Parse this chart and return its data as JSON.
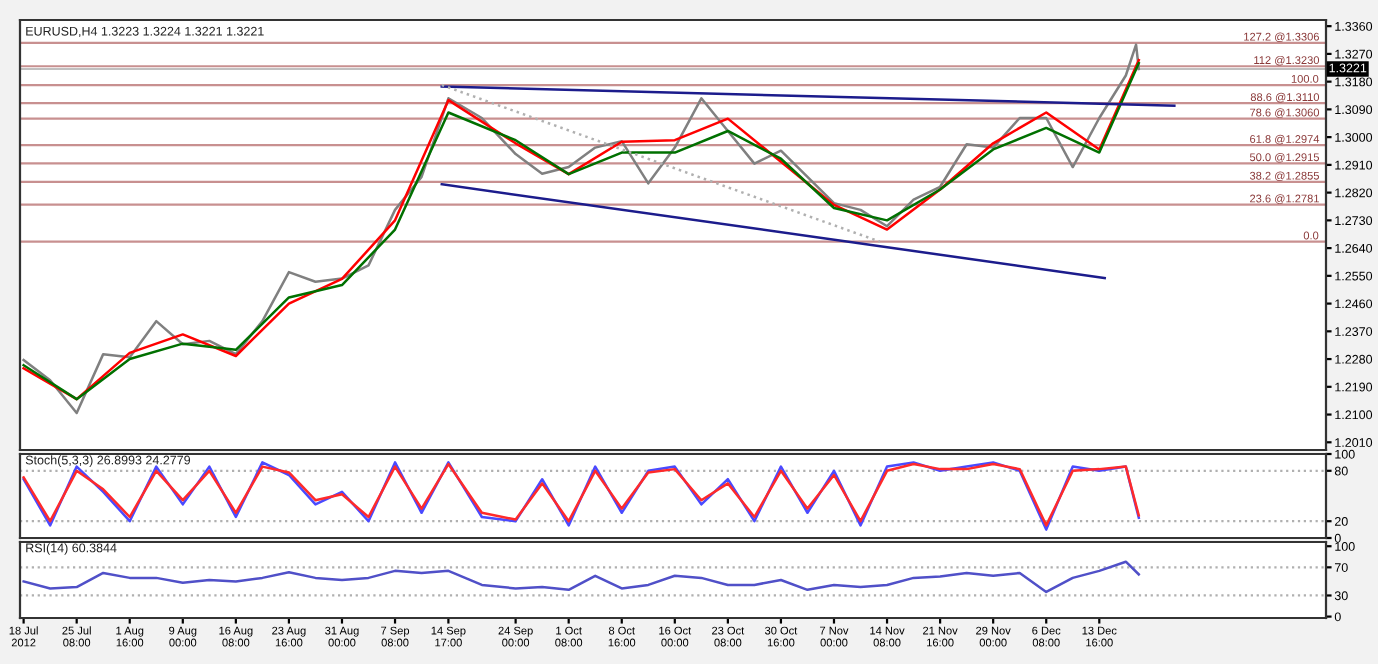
{
  "chart_data": [
    {
      "type": "line",
      "title": "EURUSD,H4 1.3223 1.3224 1.3221 1.3221",
      "tick_labels": "y",
      "xlim": [
        "2012-07-17T12:00",
        "2013-01-14T00:00"
      ],
      "annotations": [
        {
          "text": "100.0",
          "x": "2013-01-13T00:00",
          "y": 1.3169
        },
        {
          "text": "0.0",
          "x": "2013-01-13T00:00",
          "y": 1.2661
        }
      ],
      "ylim": [
        1.1985,
        1.338
      ],
      "yticks": [
        {
          "value": 1.336,
          "label": "1.3360"
        },
        {
          "value": 1.327,
          "label": "1.3270"
        },
        {
          "value": 1.318,
          "label": "1.3180"
        },
        {
          "value": 1.309,
          "label": "1.3090"
        },
        {
          "value": 1.3,
          "label": "1.3000"
        },
        {
          "value": 1.291,
          "label": "1.2910"
        },
        {
          "value": 1.282,
          "label": "1.2820"
        },
        {
          "value": 1.273,
          "label": "1.2730"
        },
        {
          "value": 1.264,
          "label": "1.2640"
        },
        {
          "value": 1.255,
          "label": "1.2550"
        },
        {
          "value": 1.246,
          "label": "1.2460"
        },
        {
          "value": 1.237,
          "label": "1.2370"
        },
        {
          "value": 1.228,
          "label": "1.2280"
        },
        {
          "value": 1.219,
          "label": "1.2190"
        },
        {
          "value": 1.21,
          "label": "1.2100"
        },
        {
          "value": 1.201,
          "label": "1.2010"
        }
      ],
      "ref_lines": [
        {
          "axis": "y",
          "value": 1.3306,
          "label": "127.2 @1.3306",
          "color": "#c89090"
        },
        {
          "axis": "y",
          "value": 1.323,
          "label": "112 @1.3230",
          "color": "#c89090"
        },
        {
          "axis": "y",
          "value": 1.3221,
          "label": "1.3221",
          "color": "#c0c0c0"
        },
        {
          "axis": "y",
          "value": 1.3169,
          "color": "#c89090"
        },
        {
          "axis": "y",
          "value": 1.311,
          "label": "88.6 @1.3110",
          "color": "#c89090"
        },
        {
          "axis": "y",
          "value": 1.306,
          "label": "78.6 @1.3060",
          "color": "#c89090"
        },
        {
          "axis": "y",
          "value": 1.2974,
          "label": "61.8 @1.2974",
          "color": "#c89090"
        },
        {
          "axis": "y",
          "value": 1.2915,
          "label": "50.0 @1.2915",
          "color": "#c89090"
        },
        {
          "axis": "y",
          "value": 1.2855,
          "label": "38.2 @1.2855",
          "color": "#c89090"
        },
        {
          "axis": "y",
          "value": 1.2781,
          "label": "23.6 @1.2781",
          "color": "#c89090"
        },
        {
          "axis": "y",
          "value": 1.2661,
          "color": "#c89090"
        }
      ],
      "series": [
        {
          "color": "#808080",
          "x": [
            "2012-07-18T00:00",
            "2012-07-21T16:00",
            "2012-07-25T08:00",
            "2012-07-29T00:00",
            "2012-08-01T16:00",
            "2012-08-05T08:00",
            "2012-08-09T00:00",
            "2012-08-12T16:00",
            "2012-08-16T08:00",
            "2012-08-20T00:00",
            "2012-08-23T16:00",
            "2012-08-27T08:00",
            "2012-08-31T00:00",
            "2012-09-03T16:00",
            "2012-09-07T08:00",
            "2012-09-11T00:00",
            "2012-09-14T17:00",
            "2012-09-19T08:00",
            "2012-09-24T00:00",
            "2012-09-27T16:00",
            "2012-10-01T08:00",
            "2012-10-05T00:00",
            "2012-10-08T16:00",
            "2012-10-12T08:00",
            "2012-10-16T00:00",
            "2012-10-19T16:00",
            "2012-10-23T08:00",
            "2012-10-27T00:00",
            "2012-10-30T16:00",
            "2012-11-03T08:00",
            "2012-11-07T00:00",
            "2012-11-10T16:00",
            "2012-11-14T08:00",
            "2012-11-18T00:00",
            "2012-11-21T16:00",
            "2012-11-25T08:00",
            "2012-11-29T00:00",
            "2012-12-02T16:00",
            "2012-12-06T08:00",
            "2012-12-10T00:00",
            "2012-12-13T16:00",
            "2012-12-17T08:00",
            "2012-12-18T18:00",
            "2012-12-19T03:00"
          ],
          "values": [
            1.2277,
            1.2211,
            1.2105,
            1.2296,
            1.2286,
            1.2403,
            1.2328,
            1.2339,
            1.2296,
            1.2403,
            1.2562,
            1.2531,
            1.2541,
            1.2584,
            1.2764,
            1.2871,
            1.3126,
            1.3062,
            1.2945,
            1.2881,
            1.2903,
            1.2966,
            1.2987,
            1.285,
            1.2966,
            1.3126,
            1.302,
            1.2914,
            1.2956,
            1.2871,
            1.2786,
            1.2764,
            1.2711,
            1.2797,
            1.2839,
            1.2977,
            1.2966,
            1.3062,
            1.3062,
            1.2903,
            1.3062,
            1.32,
            1.33,
            1.3221
          ]
        },
        {
          "color": "#ff0000",
          "x": [
            "2012-07-18T00:00",
            "2012-07-25T08:00",
            "2012-08-01T16:00",
            "2012-08-09T00:00",
            "2012-08-16T08:00",
            "2012-08-23T16:00",
            "2012-08-31T00:00",
            "2012-09-07T08:00",
            "2012-09-14T17:00",
            "2012-09-24T00:00",
            "2012-10-01T08:00",
            "2012-10-08T16:00",
            "2012-10-16T00:00",
            "2012-10-23T08:00",
            "2012-10-30T16:00",
            "2012-11-07T00:00",
            "2012-11-14T08:00",
            "2012-11-21T16:00",
            "2012-11-29T00:00",
            "2012-12-06T08:00",
            "2012-12-13T16:00",
            "2012-12-19T03:00"
          ],
          "values": [
            1.225,
            1.215,
            1.23,
            1.236,
            1.229,
            1.246,
            1.254,
            1.273,
            1.312,
            1.298,
            1.288,
            1.2985,
            1.299,
            1.306,
            1.292,
            1.278,
            1.27,
            1.283,
            1.298,
            1.308,
            1.296,
            1.325
          ]
        },
        {
          "color": "#007000",
          "x": [
            "2012-07-18T00:00",
            "2012-07-25T08:00",
            "2012-08-01T16:00",
            "2012-08-09T00:00",
            "2012-08-16T08:00",
            "2012-08-23T16:00",
            "2012-08-31T00:00",
            "2012-09-07T08:00",
            "2012-09-14T17:00",
            "2012-09-24T00:00",
            "2012-10-01T08:00",
            "2012-10-08T16:00",
            "2012-10-16T00:00",
            "2012-10-23T08:00",
            "2012-10-30T16:00",
            "2012-11-07T00:00",
            "2012-11-14T08:00",
            "2012-11-21T16:00",
            "2012-11-29T00:00",
            "2012-12-06T08:00",
            "2012-12-13T16:00",
            "2012-12-19T03:00"
          ],
          "values": [
            1.226,
            1.215,
            1.228,
            1.233,
            1.231,
            1.248,
            1.252,
            1.27,
            1.308,
            1.299,
            1.288,
            1.295,
            1.295,
            1.302,
            1.293,
            1.277,
            1.273,
            1.283,
            1.296,
            1.303,
            1.295,
            1.324
          ]
        },
        {
          "color": "#1c1c8c",
          "x": [
            "2012-09-13T19:00",
            "2012-12-24T01:00"
          ],
          "values": [
            1.3164,
            1.3102
          ]
        },
        {
          "color": "#1c1c8c",
          "x": [
            "2012-09-13T19:00",
            "2012-12-14T10:00"
          ],
          "values": [
            1.2847,
            1.2543
          ]
        },
        {
          "color": "#b0b0b0",
          "line_style": "dotted",
          "x": [
            "2012-09-13T19:00",
            "2012-11-13T08:00"
          ],
          "values": [
            1.3169,
            1.2661
          ]
        }
      ]
    },
    {
      "type": "line",
      "title": "Stoch(5,3,3) 26.8993 24.2779",
      "tick_labels": "y",
      "x": [
        "2012-07-18T00:00",
        "2012-07-21T16:00",
        "2012-07-25T08:00",
        "2012-07-29T00:00",
        "2012-08-01T16:00",
        "2012-08-05T08:00",
        "2012-08-09T00:00",
        "2012-08-12T16:00",
        "2012-08-16T08:00",
        "2012-08-20T00:00",
        "2012-08-23T16:00",
        "2012-08-27T08:00",
        "2012-08-31T00:00",
        "2012-09-03T16:00",
        "2012-09-07T08:00",
        "2012-09-11T00:00",
        "2012-09-14T17:00",
        "2012-09-19T08:00",
        "2012-09-24T00:00",
        "2012-09-27T16:00",
        "2012-10-01T08:00",
        "2012-10-05T00:00",
        "2012-10-08T16:00",
        "2012-10-12T08:00",
        "2012-10-16T00:00",
        "2012-10-19T16:00",
        "2012-10-23T08:00",
        "2012-10-27T00:00",
        "2012-10-30T16:00",
        "2012-11-03T08:00",
        "2012-11-07T00:00",
        "2012-11-10T16:00",
        "2012-11-14T08:00",
        "2012-11-18T00:00",
        "2012-11-21T16:00",
        "2012-11-25T08:00",
        "2012-11-29T00:00",
        "2012-12-02T16:00",
        "2012-12-06T08:00",
        "2012-12-10T00:00",
        "2012-12-13T16:00",
        "2012-12-17T08:00",
        "2012-12-19T03:00"
      ],
      "xlim": [
        "2012-07-17T12:00",
        "2013-01-14T00:00"
      ],
      "ylim": [
        0,
        100
      ],
      "yticks": [
        0,
        20,
        80,
        100
      ],
      "ref_lines": [
        {
          "axis": "y",
          "value": 20,
          "color": "#b0b0b0",
          "line_style": "dotted"
        },
        {
          "axis": "y",
          "value": 80,
          "color": "#b0b0b0",
          "line_style": "dotted"
        }
      ],
      "series": [
        {
          "color": "#4a4aff",
          "values": [
            70,
            15,
            85,
            55,
            20,
            85,
            40,
            85,
            25,
            90,
            75,
            40,
            55,
            20,
            90,
            30,
            90,
            25,
            20,
            70,
            15,
            85,
            30,
            80,
            85,
            40,
            70,
            20,
            85,
            30,
            80,
            15,
            85,
            90,
            80,
            85,
            90,
            80,
            10,
            85,
            80,
            85,
            24
          ]
        },
        {
          "color": "#ff2a2a",
          "values": [
            72,
            20,
            80,
            58,
            25,
            80,
            45,
            80,
            30,
            85,
            78,
            45,
            52,
            25,
            85,
            35,
            88,
            30,
            22,
            65,
            20,
            80,
            35,
            78,
            82,
            45,
            65,
            25,
            80,
            35,
            75,
            20,
            80,
            88,
            82,
            82,
            88,
            82,
            15,
            80,
            82,
            85,
            27
          ]
        }
      ]
    },
    {
      "type": "line",
      "title": "RSI(14) 60.3844",
      "x": [
        "2012-07-18T00:00",
        "2012-07-21T16:00",
        "2012-07-25T08:00",
        "2012-07-29T00:00",
        "2012-08-01T16:00",
        "2012-08-05T08:00",
        "2012-08-09T00:00",
        "2012-08-12T16:00",
        "2012-08-16T08:00",
        "2012-08-20T00:00",
        "2012-08-23T16:00",
        "2012-08-27T08:00",
        "2012-08-31T00:00",
        "2012-09-03T16:00",
        "2012-09-07T08:00",
        "2012-09-11T00:00",
        "2012-09-14T17:00",
        "2012-09-19T08:00",
        "2012-09-24T00:00",
        "2012-09-27T16:00",
        "2012-10-01T08:00",
        "2012-10-05T00:00",
        "2012-10-08T16:00",
        "2012-10-12T08:00",
        "2012-10-16T00:00",
        "2012-10-19T16:00",
        "2012-10-23T08:00",
        "2012-10-27T00:00",
        "2012-10-30T16:00",
        "2012-11-03T08:00",
        "2012-11-07T00:00",
        "2012-11-10T16:00",
        "2012-11-14T08:00",
        "2012-11-18T00:00",
        "2012-11-21T16:00",
        "2012-11-25T08:00",
        "2012-11-29T00:00",
        "2012-12-02T16:00",
        "2012-12-06T08:00",
        "2012-12-10T00:00",
        "2012-12-13T16:00",
        "2012-12-17T08:00",
        "2012-12-19T03:00"
      ],
      "xlim": [
        "2012-07-17T12:00",
        "2013-01-14T00:00"
      ],
      "xticks": [
        {
          "value": "2012-07-18T00:00",
          "label": "18 Jul 2012"
        },
        {
          "value": "2012-07-25T08:00",
          "label": "25 Jul 08:00"
        },
        {
          "value": "2012-08-01T16:00",
          "label": "1 Aug 16:00"
        },
        {
          "value": "2012-08-09T00:00",
          "label": "9 Aug 00:00"
        },
        {
          "value": "2012-08-16T08:00",
          "label": "16 Aug 08:00"
        },
        {
          "value": "2012-08-23T16:00",
          "label": "23 Aug 16:00"
        },
        {
          "value": "2012-08-31T00:00",
          "label": "31 Aug 00:00"
        },
        {
          "value": "2012-09-07T08:00",
          "label": "7 Sep 08:00"
        },
        {
          "value": "2012-09-14T17:00",
          "label": "14 Sep 17:00"
        },
        {
          "value": "2012-09-24T00:00",
          "label": "24 Sep 00:00"
        },
        {
          "value": "2012-10-01T08:00",
          "label": "1 Oct 08:00"
        },
        {
          "value": "2012-10-08T16:00",
          "label": "8 Oct 16:00"
        },
        {
          "value": "2012-10-16T00:00",
          "label": "16 Oct 00:00"
        },
        {
          "value": "2012-10-23T08:00",
          "label": "23 Oct 08:00"
        },
        {
          "value": "2012-10-30T16:00",
          "label": "30 Oct 16:00"
        },
        {
          "value": "2012-11-07T00:00",
          "label": "7 Nov 00:00"
        },
        {
          "value": "2012-11-14T08:00",
          "label": "14 Nov 08:00"
        },
        {
          "value": "2012-11-21T16:00",
          "label": "21 Nov 16:00"
        },
        {
          "value": "2012-11-29T00:00",
          "label": "29 Nov 00:00"
        },
        {
          "value": "2012-12-06T08:00",
          "label": "6 Dec 08:00"
        },
        {
          "value": "2012-12-13T16:00",
          "label": "13 Dec 16:00"
        }
      ],
      "ylim": [
        -2,
        106
      ],
      "yticks": [
        0,
        30,
        70,
        100
      ],
      "ref_lines": [
        {
          "axis": "y",
          "value": 30,
          "color": "#b0b0b0",
          "line_style": "dotted"
        },
        {
          "axis": "y",
          "value": 70,
          "color": "#b0b0b0",
          "line_style": "dotted"
        }
      ],
      "series": [
        {
          "color": "#5050c8",
          "values": [
            50,
            40,
            42,
            62,
            55,
            55,
            48,
            52,
            50,
            55,
            63,
            55,
            52,
            55,
            65,
            62,
            65,
            45,
            40,
            42,
            38,
            58,
            40,
            45,
            58,
            55,
            45,
            45,
            52,
            38,
            45,
            42,
            45,
            55,
            57,
            62,
            58,
            62,
            35,
            55,
            65,
            78,
            60
          ]
        }
      ]
    }
  ]
}
